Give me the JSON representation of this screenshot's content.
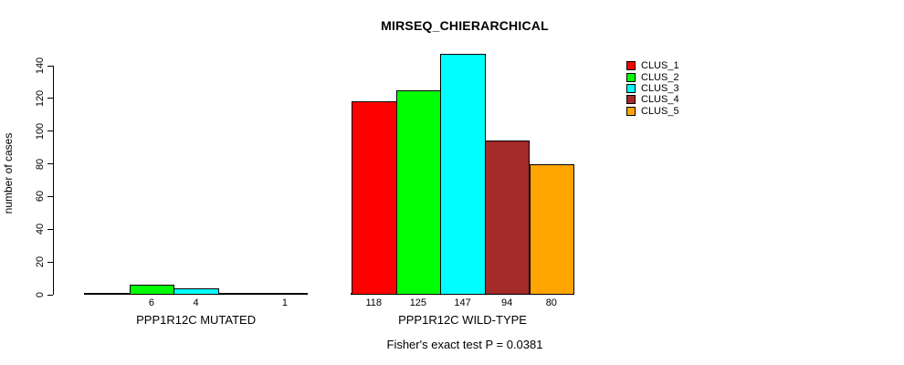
{
  "chart_data": {
    "type": "bar",
    "title": "MIRSEQ_CHIERARCHICAL",
    "ylabel": "number of cases",
    "footer": "Fisher's exact test P = 0.0381",
    "ylim": [
      0,
      140
    ],
    "yticks": [
      0,
      20,
      40,
      60,
      80,
      100,
      120,
      140
    ],
    "grid": false,
    "legend_position": "top-right",
    "categories": [
      "PPP1R12C MUTATED",
      "PPP1R12C WILD-TYPE"
    ],
    "series": [
      {
        "name": "CLUS_1",
        "color": "#FF0000",
        "values": [
          0,
          118
        ]
      },
      {
        "name": "CLUS_2",
        "color": "#00FF00",
        "values": [
          6,
          125
        ]
      },
      {
        "name": "CLUS_3",
        "color": "#00FFFF",
        "values": [
          4,
          147
        ]
      },
      {
        "name": "CLUS_4",
        "color": "#A52A2A",
        "values": [
          0,
          94
        ]
      },
      {
        "name": "CLUS_5",
        "color": "#FFA500",
        "values": [
          1,
          80
        ]
      }
    ],
    "bar_value_labels": {
      "shown_for_zero": false
    }
  }
}
